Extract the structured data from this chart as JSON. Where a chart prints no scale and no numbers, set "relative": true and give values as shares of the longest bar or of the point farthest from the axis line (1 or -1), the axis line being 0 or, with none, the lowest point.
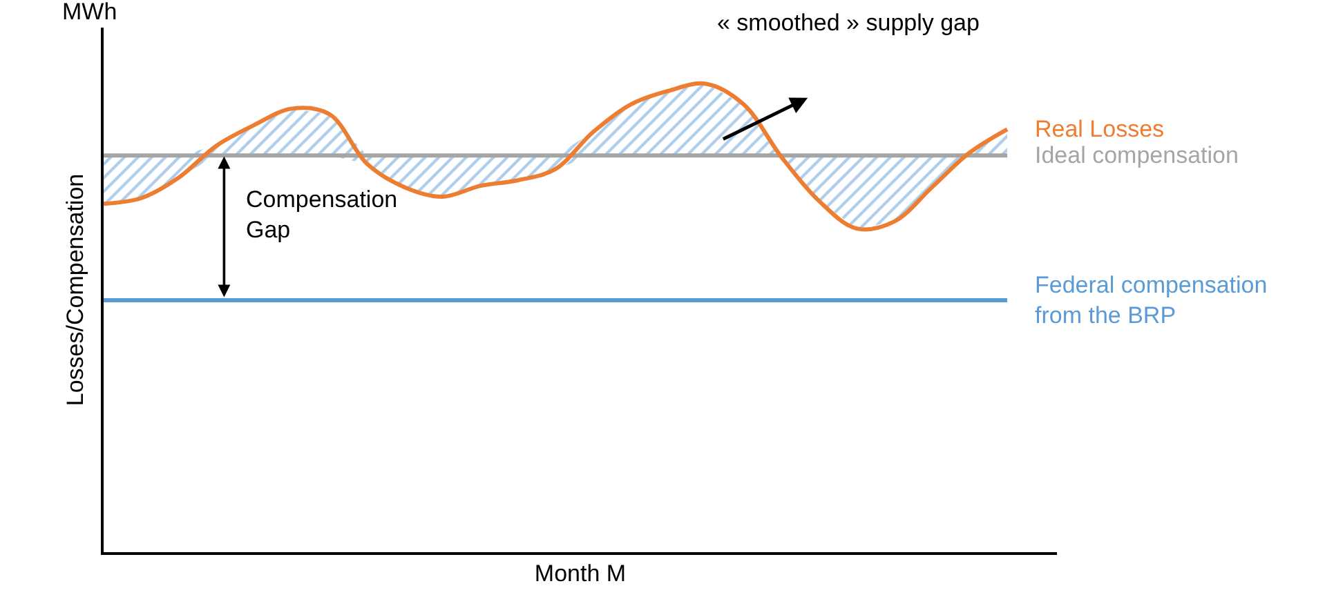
{
  "chart_data": {
    "type": "line",
    "relative": true,
    "xlabel": "Month M",
    "ylabel": "Losses/Compensation",
    "categories": [
      null,
      null,
      null,
      null,
      null,
      null,
      null,
      null,
      null,
      null,
      null,
      null,
      null,
      null,
      null,
      null,
      null,
      null,
      null,
      null,
      null,
      null,
      null,
      null,
      null
    ],
    "series": [
      {
        "name": "Ideal compensation",
        "color": "#a5a5a5",
        "values": [
          0.847,
          0.847,
          0.847,
          0.847,
          0.847,
          0.847,
          0.847,
          0.847,
          0.847,
          0.847,
          0.847,
          0.847,
          0.847,
          0.847,
          0.847,
          0.847,
          0.847,
          0.847,
          0.847,
          0.847,
          0.847,
          0.847,
          0.847,
          0.847,
          0.847
        ]
      },
      {
        "name": "Real Losses",
        "color": "#ed7d31",
        "values": [
          0.744,
          0.756,
          0.8,
          0.868,
          0.912,
          0.947,
          0.935,
          0.829,
          0.779,
          0.759,
          0.782,
          0.794,
          0.818,
          0.897,
          0.956,
          0.985,
          1.0,
          0.956,
          0.844,
          0.75,
          0.691,
          0.706,
          0.779,
          0.853,
          0.903
        ],
        "lower": [
          0.744,
          0.756,
          0.8,
          0.847,
          0.847,
          0.847,
          0.847,
          0.829,
          0.779,
          0.759,
          0.782,
          0.794,
          0.818,
          0.847,
          0.847,
          0.847,
          0.847,
          0.847,
          0.844,
          0.75,
          0.691,
          0.706,
          0.779,
          0.847,
          0.847
        ],
        "upper": [
          0.847,
          0.847,
          0.847,
          0.868,
          0.912,
          0.947,
          0.935,
          0.847,
          0.847,
          0.847,
          0.847,
          0.847,
          0.847,
          0.897,
          0.956,
          0.985,
          1.0,
          0.956,
          0.847,
          0.847,
          0.847,
          0.847,
          0.847,
          0.853,
          0.903
        ]
      },
      {
        "name": "Federal compensation\nfrom the BRP",
        "color": "#5b9bd5",
        "values": [
          0.538,
          0.538,
          0.538,
          0.538,
          0.538,
          0.538,
          0.538,
          0.538,
          0.538,
          0.538,
          0.538,
          0.538,
          0.538,
          0.538,
          0.538,
          0.538,
          0.538,
          0.538,
          0.538,
          0.538,
          0.538,
          0.538,
          0.538,
          0.538,
          0.538
        ]
      }
    ],
    "annotations": [
      "MWh",
      "« smoothed » supply gap",
      "Compensation\nGap"
    ],
    "legend": false
  }
}
